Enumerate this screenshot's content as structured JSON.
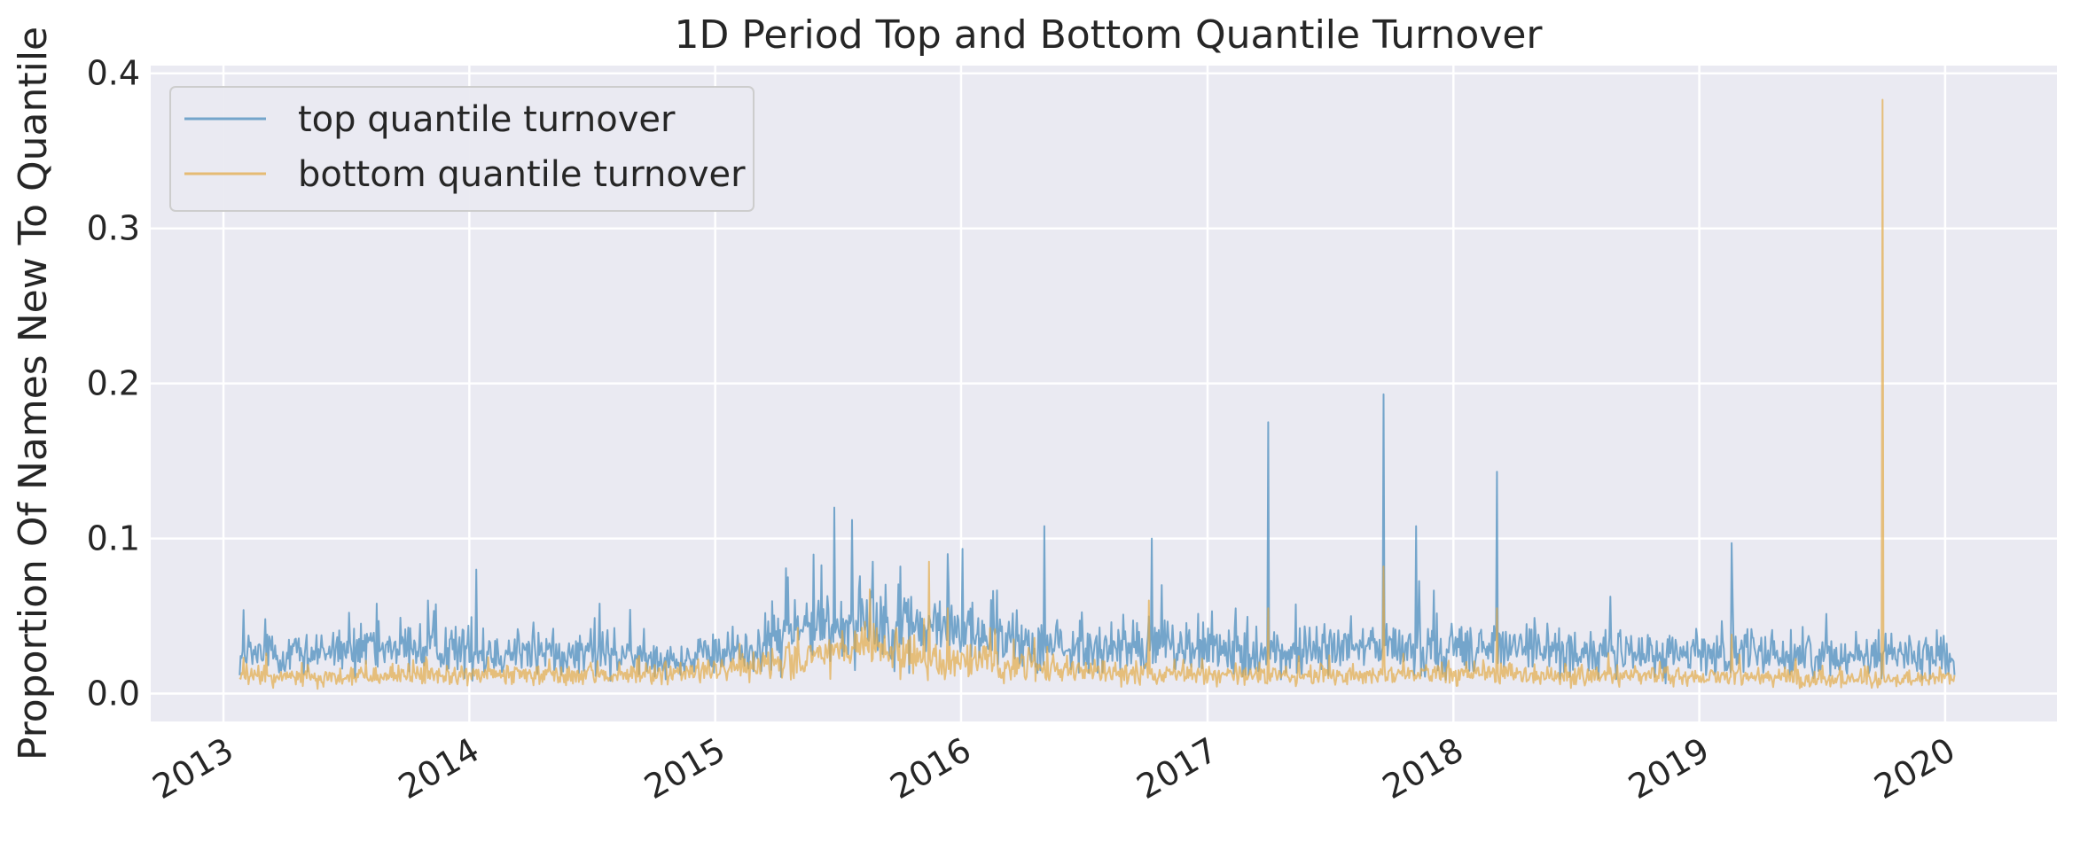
{
  "chart_data": {
    "type": "line",
    "title": "1D Period Top and Bottom Quantile Turnover",
    "xlabel": "",
    "ylabel": "Proportion Of Names New To Quantile",
    "xlim": [
      "2012-09-15",
      "2020-06-15"
    ],
    "ylim": [
      -0.018,
      0.405
    ],
    "x_ticks": [
      "2013",
      "2014",
      "2015",
      "2016",
      "2017",
      "2018",
      "2019",
      "2020"
    ],
    "y_ticks": [
      "0.0",
      "0.1",
      "0.2",
      "0.3",
      "0.4"
    ],
    "y_tick_values": [
      0.0,
      0.1,
      0.2,
      0.3,
      0.4
    ],
    "grid": true,
    "legend": "top-left",
    "colors": {
      "background": "#eaeaf2",
      "grid": "#ffffff",
      "top": "#4c8dbd",
      "bottom": "#e3ab49"
    },
    "x_start": "2013-01-25",
    "x_end": "2020-01-15",
    "series": [
      {
        "name": "top quantile turnover",
        "color": "#4c8dbd",
        "base": [
          [
            0.0,
            0.024
          ],
          [
            0.06,
            0.026
          ],
          [
            0.12,
            0.03
          ],
          [
            0.19,
            0.025
          ],
          [
            0.26,
            0.022
          ],
          [
            0.3,
            0.028
          ],
          [
            0.33,
            0.042
          ],
          [
            0.36,
            0.048
          ],
          [
            0.39,
            0.043
          ],
          [
            0.42,
            0.042
          ],
          [
            0.44,
            0.036
          ],
          [
            0.47,
            0.03
          ],
          [
            0.5,
            0.028
          ],
          [
            0.55,
            0.03
          ],
          [
            0.6,
            0.025
          ],
          [
            0.64,
            0.029
          ],
          [
            0.7,
            0.03
          ],
          [
            0.76,
            0.028
          ],
          [
            0.82,
            0.025
          ],
          [
            0.88,
            0.026
          ],
          [
            0.93,
            0.024
          ],
          [
            0.96,
            0.026
          ],
          [
            1.0,
            0.025
          ]
        ],
        "spikes": [
          [
            0.015,
            0.048
          ],
          [
            0.08,
            0.058
          ],
          [
            0.11,
            0.06
          ],
          [
            0.138,
            0.08
          ],
          [
            0.21,
            0.058
          ],
          [
            0.32,
            0.075
          ],
          [
            0.347,
            0.12
          ],
          [
            0.357,
            0.112
          ],
          [
            0.369,
            0.085
          ],
          [
            0.385,
            0.082
          ],
          [
            0.413,
            0.09
          ],
          [
            0.469,
            0.108
          ],
          [
            0.532,
            0.1
          ],
          [
            0.6,
            0.175
          ],
          [
            0.667,
            0.193
          ],
          [
            0.686,
            0.108
          ],
          [
            0.733,
            0.143
          ],
          [
            0.87,
            0.097
          ],
          [
            0.958,
            0.025
          ]
        ]
      },
      {
        "name": "bottom quantile turnover",
        "color": "#e3ab49",
        "base": [
          [
            0.0,
            0.011
          ],
          [
            0.06,
            0.011
          ],
          [
            0.12,
            0.012
          ],
          [
            0.19,
            0.011
          ],
          [
            0.26,
            0.013
          ],
          [
            0.3,
            0.016
          ],
          [
            0.34,
            0.025
          ],
          [
            0.37,
            0.027
          ],
          [
            0.4,
            0.022
          ],
          [
            0.43,
            0.02
          ],
          [
            0.45,
            0.017
          ],
          [
            0.5,
            0.014
          ],
          [
            0.55,
            0.012
          ],
          [
            0.6,
            0.011
          ],
          [
            0.65,
            0.012
          ],
          [
            0.7,
            0.013
          ],
          [
            0.76,
            0.012
          ],
          [
            0.82,
            0.011
          ],
          [
            0.88,
            0.011
          ],
          [
            0.92,
            0.009
          ],
          [
            0.96,
            0.01
          ],
          [
            1.0,
            0.01
          ]
        ],
        "spikes": [
          [
            0.37,
            0.045
          ],
          [
            0.402,
            0.085
          ],
          [
            0.413,
            0.055
          ],
          [
            0.53,
            0.06
          ],
          [
            0.6,
            0.055
          ],
          [
            0.667,
            0.082
          ],
          [
            0.733,
            0.055
          ],
          [
            0.87,
            0.038
          ],
          [
            0.958,
            0.383
          ]
        ]
      }
    ]
  }
}
